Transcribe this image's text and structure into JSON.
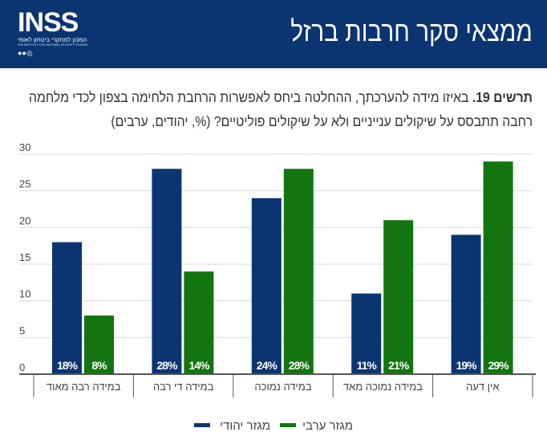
{
  "header": {
    "title": "ממצאי סקר חרבות ברזל",
    "logo_text": "INSS",
    "logo_subtitle": "המכון למחקרי ביטחון לאומי",
    "logo_english": "THE INSTITUTE FOR NATIONAL SECURITY STUDIES"
  },
  "question": {
    "label": "תרשים 19.",
    "text": " באיזו מידה להערכתך, ההחלטה ביחס לאפשרות הרחבת הלחימה בצפון לכדי מלחמה רחבה תתבסס על שיקולים ענייניים ולא על שיקולים פוליטיים? (%, יהודים, ערבים)"
  },
  "chart_data": {
    "type": "bar",
    "categories": [
      "במידה רבה מאוד",
      "במידה די רבה",
      "במידה נמוכה",
      "במידה נמוכה מאד",
      "אין דעה"
    ],
    "series": [
      {
        "name": "מגזר יהודי",
        "color": "#0a3570",
        "values": [
          18,
          28,
          24,
          11,
          19
        ],
        "labels": [
          "18%",
          "28%",
          "24%",
          "11%",
          "19%"
        ]
      },
      {
        "name": "מגזר ערבי",
        "color": "#13750f",
        "values": [
          8,
          14,
          28,
          21,
          29
        ],
        "labels": [
          "8%",
          "14%",
          "28%",
          "21%",
          "29%"
        ]
      }
    ],
    "ylim": [
      0,
      30
    ],
    "yticks": [
      "0",
      "5",
      "10",
      "15",
      "20",
      "25",
      "30"
    ],
    "grid": true,
    "legend": "bottom"
  }
}
